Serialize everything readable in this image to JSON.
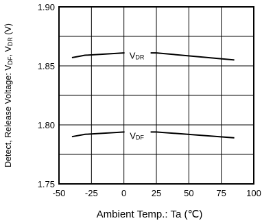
{
  "chart_data": {
    "type": "line",
    "xlabel": "Ambient Temp.: Ta (℃)",
    "ylabel": "Detect, Release Voltage: VDF, VDR (V)",
    "ylabel_parts": {
      "pre": "Detect, Release Voltage: V",
      "s1": "DF",
      "mid": ", V",
      "s2": "DR",
      "post": " (V)"
    },
    "xlim": [
      -50,
      100
    ],
    "ylim": [
      1.75,
      1.9
    ],
    "xticks": [
      -50,
      -25,
      0,
      25,
      50,
      75,
      100
    ],
    "yticks": [
      1.75,
      1.8,
      1.85,
      1.9
    ],
    "xtick_labels": [
      "-50",
      "-25",
      "0",
      "25",
      "50",
      "75",
      "100"
    ],
    "ytick_labels": [
      "1.75",
      "1.80",
      "1.85",
      "1.90"
    ],
    "grid": true,
    "series": [
      {
        "name": "VDR",
        "label_main": "V",
        "label_sub": "DR",
        "label_at": [
          10,
          1.856
        ],
        "x": [
          -40,
          -30,
          0,
          25,
          85
        ],
        "y": [
          1.857,
          1.859,
          1.861,
          1.861,
          1.855
        ]
      },
      {
        "name": "VDF",
        "label_main": "V",
        "label_sub": "DF",
        "label_at": [
          10,
          1.788
        ],
        "x": [
          -40,
          -30,
          0,
          25,
          85
        ],
        "y": [
          1.79,
          1.792,
          1.794,
          1.794,
          1.789
        ]
      }
    ]
  }
}
